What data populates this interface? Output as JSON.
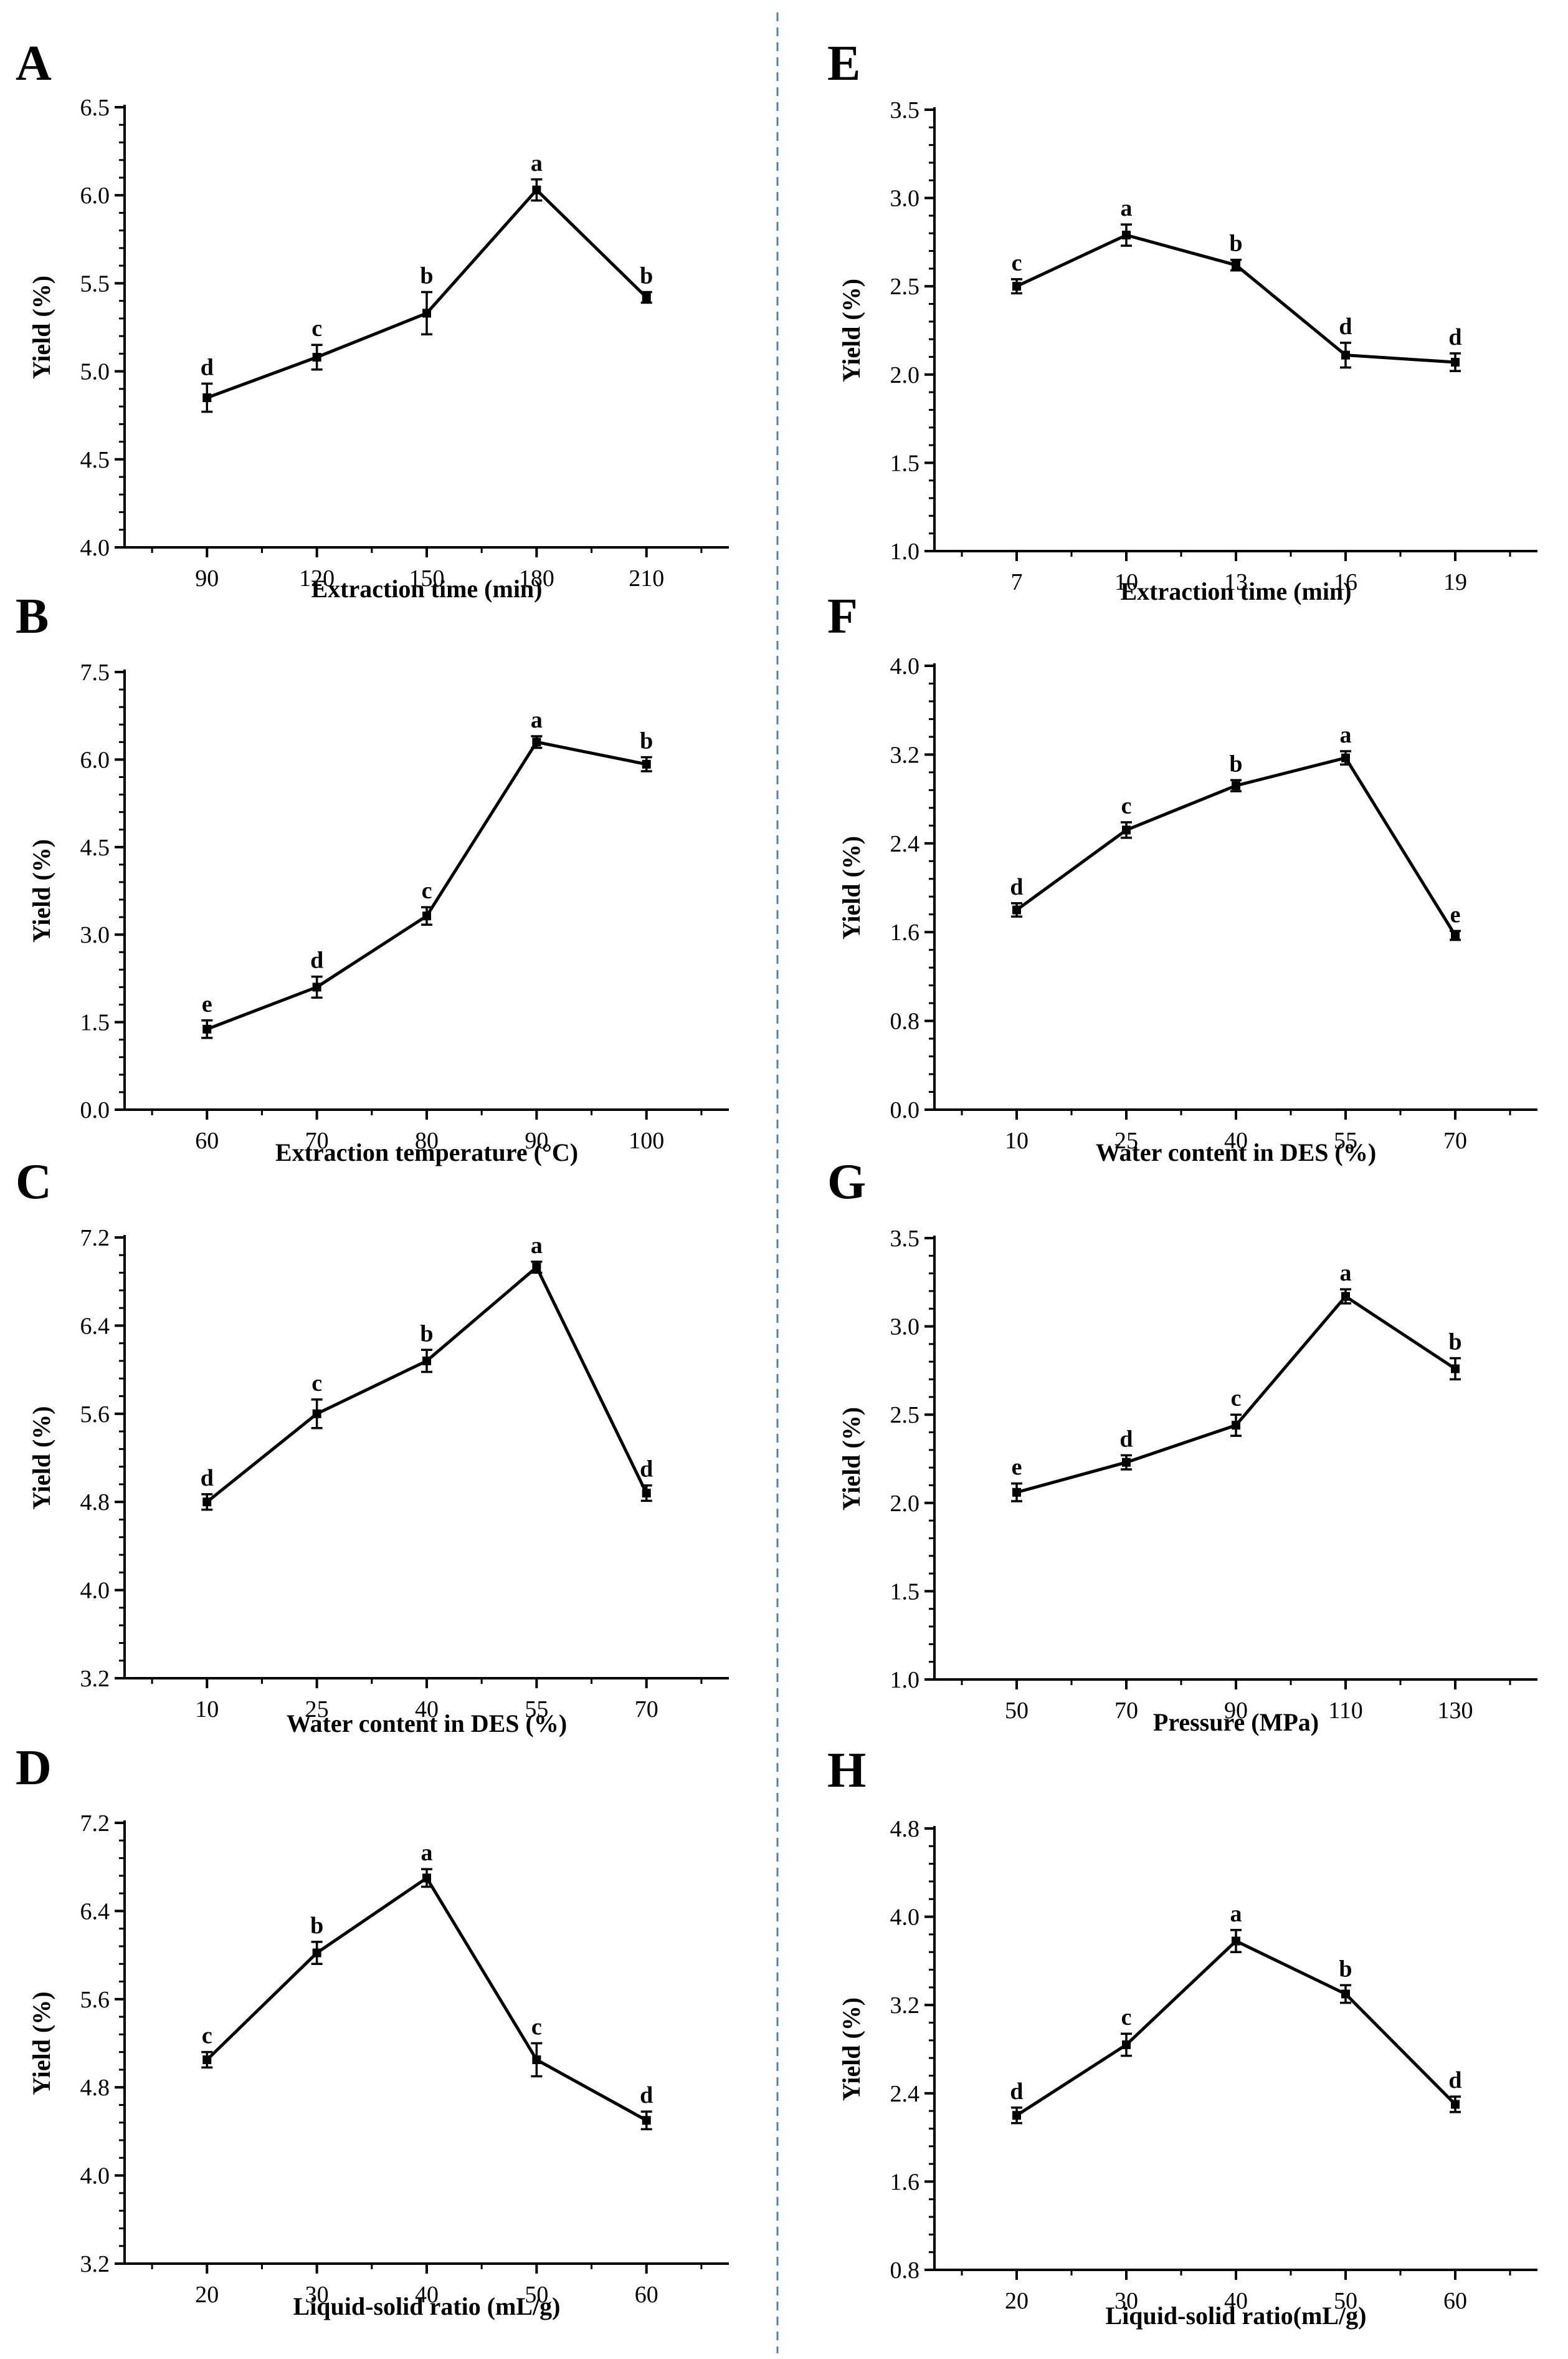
{
  "chart_data": [
    {
      "panel": "A",
      "type": "line",
      "x": [
        "90",
        "120",
        "150",
        "180",
        "210"
      ],
      "values": [
        4.85,
        5.08,
        5.33,
        6.03,
        5.42
      ],
      "errors": [
        0.08,
        0.07,
        0.12,
        0.06,
        0.03
      ],
      "letters": [
        "d",
        "c",
        "b",
        "a",
        "b"
      ],
      "xlabel": "Extraction time (min)",
      "ylabel": "Yield (%)",
      "ylim": [
        4.0,
        6.5
      ],
      "yticks": [
        "4.0",
        "4.5",
        "5.0",
        "5.5",
        "6.0",
        "6.5"
      ]
    },
    {
      "panel": "B",
      "type": "line",
      "x": [
        "60",
        "70",
        "80",
        "90",
        "100"
      ],
      "values": [
        1.38,
        2.1,
        3.32,
        6.3,
        5.92
      ],
      "errors": [
        0.15,
        0.18,
        0.15,
        0.1,
        0.12
      ],
      "letters": [
        "e",
        "d",
        "c",
        "a",
        "b"
      ],
      "xlabel": "Extraction temperature (°C)",
      "ylabel": "Yield (%)",
      "ylim": [
        0.0,
        7.5
      ],
      "yticks": [
        "0.0",
        "1.5",
        "3.0",
        "4.5",
        "6.0",
        "7.5"
      ]
    },
    {
      "panel": "C",
      "type": "line",
      "x": [
        "10",
        "25",
        "40",
        "55",
        "70"
      ],
      "values": [
        4.8,
        5.6,
        6.08,
        6.93,
        4.88
      ],
      "errors": [
        0.07,
        0.13,
        0.1,
        0.05,
        0.07
      ],
      "letters": [
        "d",
        "c",
        "b",
        "a",
        "d"
      ],
      "xlabel": "Water content in DES (%)",
      "ylabel": "Yield (%)",
      "ylim": [
        3.2,
        7.2
      ],
      "yticks": [
        "3.2",
        "4.0",
        "4.8",
        "5.6",
        "6.4",
        "7.2"
      ]
    },
    {
      "panel": "D",
      "type": "line",
      "x": [
        "20",
        "30",
        "40",
        "50",
        "60"
      ],
      "values": [
        5.05,
        6.02,
        6.7,
        5.05,
        4.5
      ],
      "errors": [
        0.07,
        0.1,
        0.08,
        0.15,
        0.08
      ],
      "letters": [
        "c",
        "b",
        "a",
        "c",
        "d"
      ],
      "xlabel": "Liquid-solid  ratio (mL/g)",
      "ylabel": "Yield (%)",
      "ylim": [
        3.2,
        7.2
      ],
      "yticks": [
        "3.2",
        "4.0",
        "4.8",
        "5.6",
        "6.4",
        "7.2"
      ]
    },
    {
      "panel": "E",
      "type": "line",
      "x": [
        "7",
        "10",
        "13",
        "16",
        "19"
      ],
      "values": [
        2.5,
        2.79,
        2.62,
        2.11,
        2.07
      ],
      "errors": [
        0.04,
        0.06,
        0.03,
        0.07,
        0.05
      ],
      "letters": [
        "c",
        "a",
        "b",
        "d",
        "d"
      ],
      "xlabel": "Extraction time (min)",
      "ylabel": "Yield (%)",
      "ylim": [
        1.0,
        3.5
      ],
      "yticks": [
        "1.0",
        "1.5",
        "2.0",
        "2.5",
        "3.0",
        "3.5"
      ]
    },
    {
      "panel": "F",
      "type": "line",
      "x": [
        "10",
        "25",
        "40",
        "55",
        "70"
      ],
      "values": [
        1.8,
        2.52,
        2.92,
        3.17,
        1.57
      ],
      "errors": [
        0.06,
        0.07,
        0.05,
        0.06,
        0.04
      ],
      "letters": [
        "d",
        "c",
        "b",
        "a",
        "e"
      ],
      "xlabel": "Water content in DES (%)",
      "ylabel": "Yield (%)",
      "ylim": [
        0.0,
        4.0
      ],
      "yticks": [
        "0.0",
        "0.8",
        "1.6",
        "2.4",
        "3.2",
        "4.0"
      ]
    },
    {
      "panel": "G",
      "type": "line",
      "x": [
        "50",
        "70",
        "90",
        "110",
        "130"
      ],
      "values": [
        2.06,
        2.23,
        2.44,
        3.17,
        2.76
      ],
      "errors": [
        0.05,
        0.04,
        0.06,
        0.04,
        0.06
      ],
      "letters": [
        "e",
        "d",
        "c",
        "a",
        "b"
      ],
      "xlabel": "Pressure (MPa)",
      "ylabel": "Yield (%)",
      "ylim": [
        1.0,
        3.5
      ],
      "yticks": [
        "1.0",
        "1.5",
        "2.0",
        "2.5",
        "3.0",
        "3.5"
      ]
    },
    {
      "panel": "H",
      "type": "line",
      "x": [
        "20",
        "30",
        "40",
        "50",
        "60"
      ],
      "values": [
        2.2,
        2.84,
        3.78,
        3.3,
        2.3
      ],
      "errors": [
        0.07,
        0.1,
        0.1,
        0.08,
        0.07
      ],
      "letters": [
        "d",
        "c",
        "a",
        "b",
        "d"
      ],
      "xlabel": "Liquid-solid  ratio(mL/g)",
      "ylabel": "Yield (%)",
      "ylim": [
        0.8,
        4.8
      ],
      "yticks": [
        "0.8",
        "1.6",
        "2.4",
        "3.2",
        "4.0",
        "4.8"
      ]
    }
  ]
}
